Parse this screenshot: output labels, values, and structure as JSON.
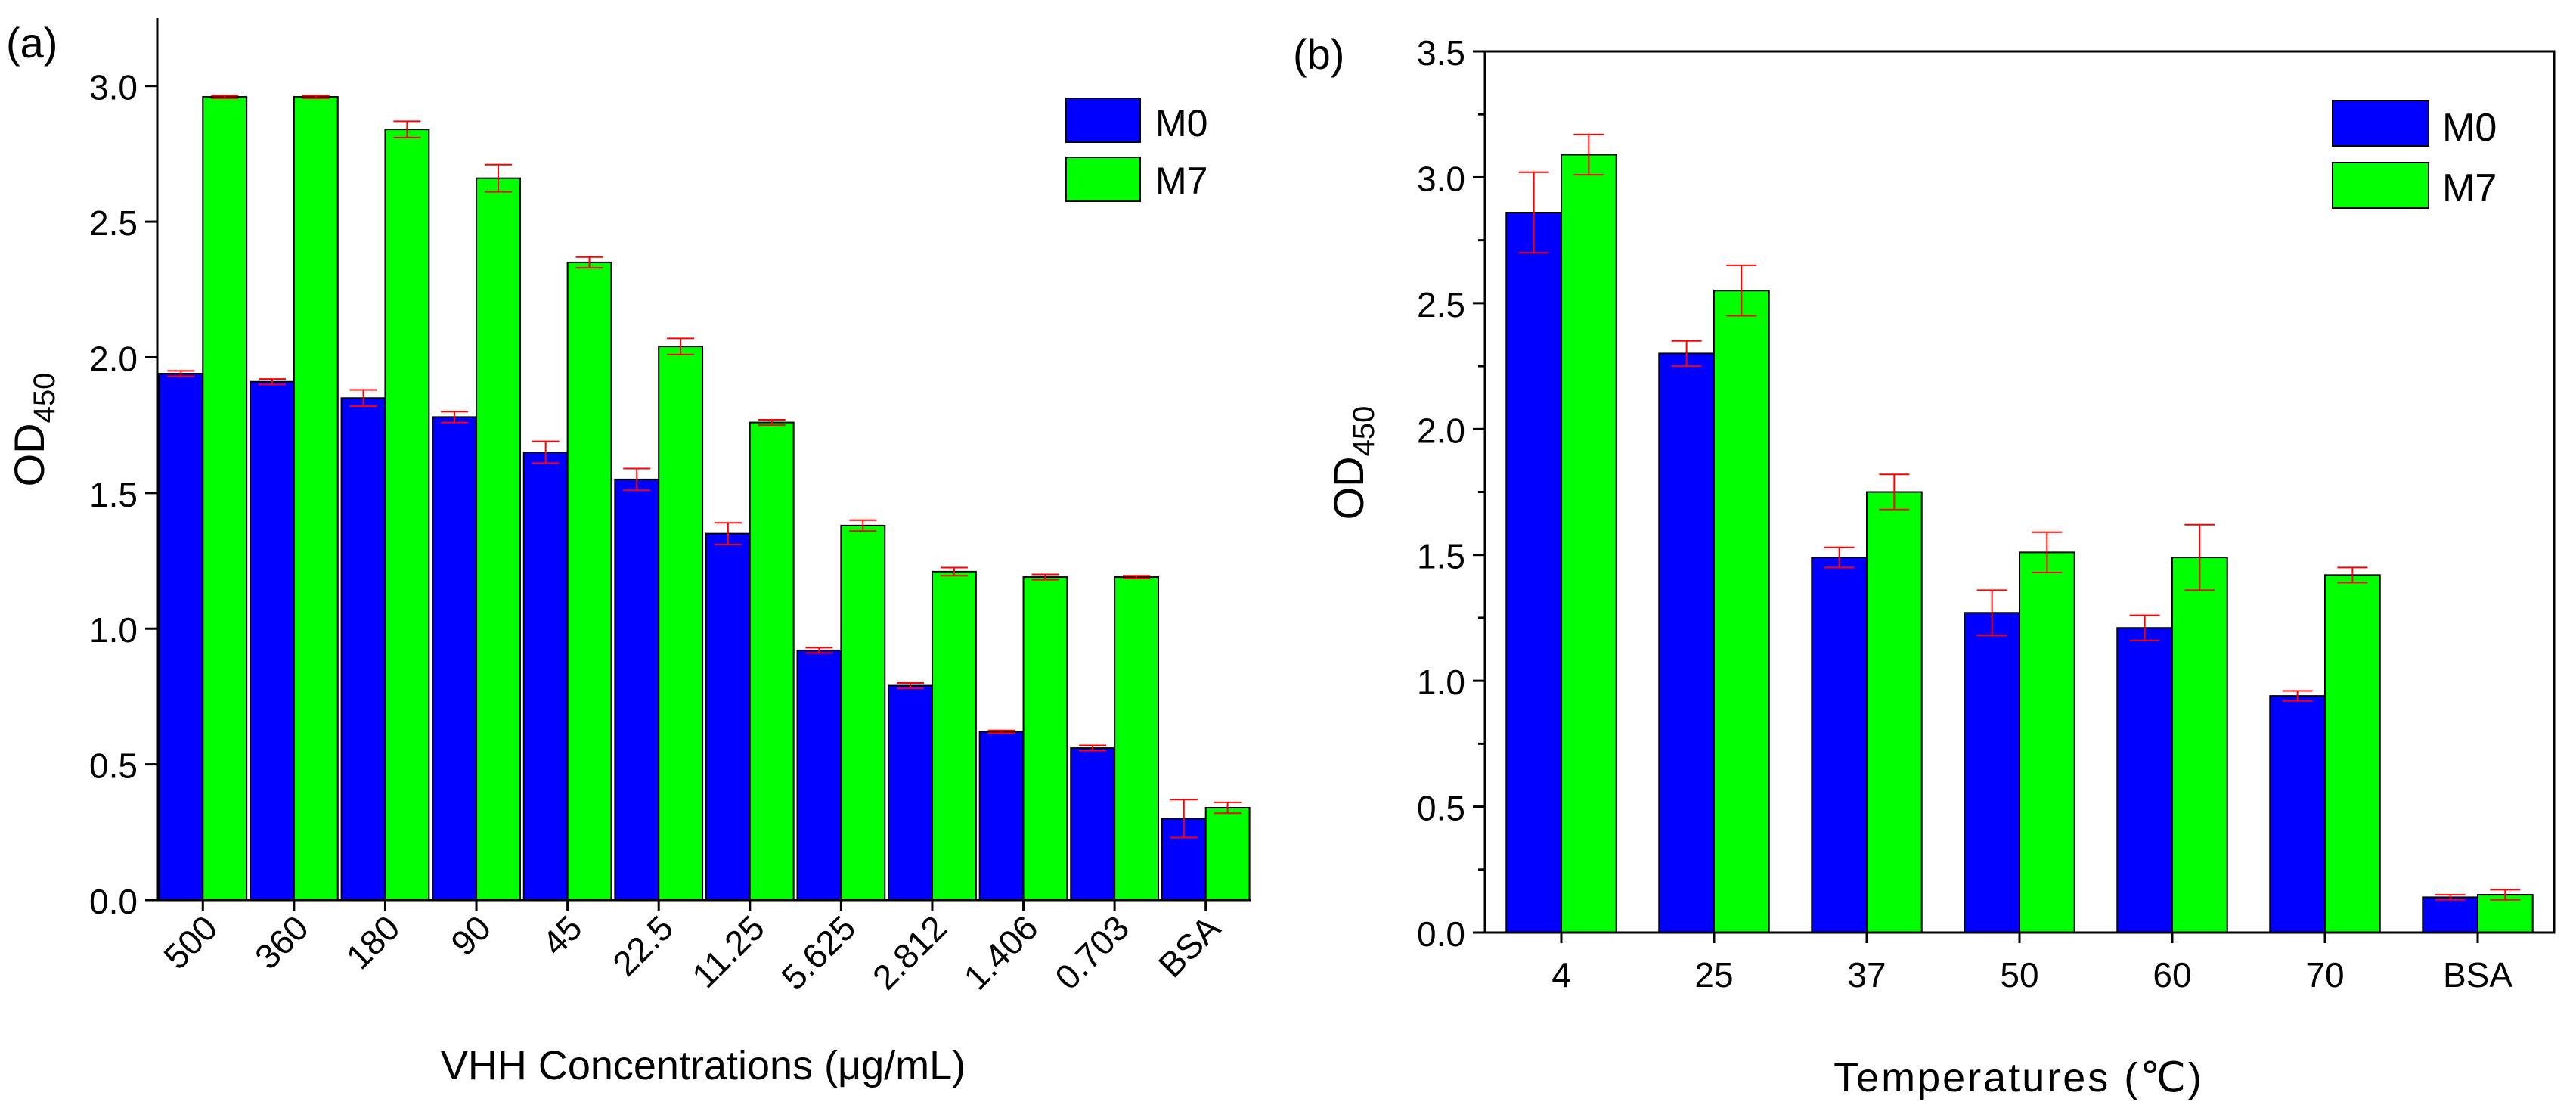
{
  "colors": {
    "m0": "#0000ff",
    "m7": "#00ff00",
    "error": "#ff0000",
    "axis": "#000000"
  },
  "chart_data": [
    {
      "type": "bar",
      "panel_label": "(a)",
      "categories": [
        "500",
        "360",
        "180",
        "90",
        "45",
        "22.5",
        "11.25",
        "5.625",
        "2.812",
        "1.406",
        "0.703",
        "BSA"
      ],
      "series": [
        {
          "name": "M0",
          "values": [
            1.94,
            1.91,
            1.85,
            1.78,
            1.65,
            1.55,
            1.35,
            0.92,
            0.79,
            0.62,
            0.56,
            0.3
          ],
          "errors": [
            0.01,
            0.01,
            0.03,
            0.02,
            0.04,
            0.04,
            0.04,
            0.01,
            0.01,
            0.005,
            0.01,
            0.07
          ]
        },
        {
          "name": "M7",
          "values": [
            2.96,
            2.96,
            2.84,
            2.66,
            2.35,
            2.04,
            1.76,
            1.38,
            1.21,
            1.19,
            1.19,
            0.34
          ],
          "errors": [
            0.005,
            0.005,
            0.03,
            0.05,
            0.02,
            0.03,
            0.01,
            0.02,
            0.015,
            0.01,
            0.005,
            0.02
          ]
        }
      ],
      "xlabel": "VHH Concentrations (μg/mL)",
      "ylabel_main": "OD",
      "ylabel_sub": "450",
      "ylim": [
        0,
        3.25
      ],
      "yticks": [
        "0.0",
        "0.5",
        "1.0",
        "1.5",
        "2.0",
        "2.5",
        "3.0"
      ],
      "legend": "top-right",
      "xtick_rotation": "45 degrees"
    },
    {
      "type": "bar",
      "panel_label": "(b)",
      "categories": [
        "4",
        "25",
        "37",
        "50",
        "60",
        "70",
        "BSA"
      ],
      "series": [
        {
          "name": "M0",
          "values": [
            2.86,
            2.3,
            1.49,
            1.27,
            1.21,
            0.94,
            0.14
          ],
          "errors": [
            0.16,
            0.05,
            0.04,
            0.09,
            0.05,
            0.02,
            0.01
          ]
        },
        {
          "name": "M7",
          "values": [
            3.09,
            2.55,
            1.75,
            1.51,
            1.49,
            1.42,
            0.15
          ],
          "errors": [
            0.08,
            0.1,
            0.07,
            0.08,
            0.13,
            0.03,
            0.02
          ]
        }
      ],
      "xlabel": "Temperatures (℃)",
      "ylabel_main": "OD",
      "ylabel_sub": "450",
      "ylim": [
        0,
        3.5
      ],
      "yticks": [
        "0.0",
        "0.5",
        "1.0",
        "1.5",
        "2.0",
        "2.5",
        "3.0",
        "3.5"
      ],
      "legend": "top-right"
    }
  ]
}
